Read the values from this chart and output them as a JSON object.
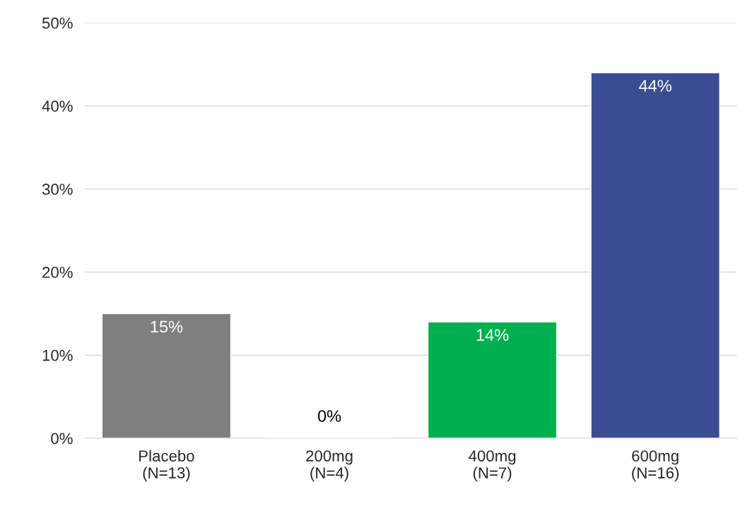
{
  "chart_data": {
    "type": "bar",
    "categories": [
      "Placebo\n(N=13)",
      "200mg\n(N=4)",
      "400mg\n(N=7)",
      "600mg\n(N=16)"
    ],
    "values": [
      15,
      0,
      14,
      44
    ],
    "colors": [
      "#7f7f7f",
      null,
      "#00b050",
      "#3a4d92"
    ],
    "value_labels": [
      "15%",
      "0%",
      "14%",
      "44%"
    ],
    "ylim": [
      0,
      50
    ],
    "yticks": [
      {
        "value": 0,
        "label": "0%"
      },
      {
        "value": 10,
        "label": "10%"
      },
      {
        "value": 20,
        "label": "20%"
      },
      {
        "value": 30,
        "label": "30%"
      },
      {
        "value": 40,
        "label": "40%"
      },
      {
        "value": 50,
        "label": "50%"
      }
    ],
    "grid": "y",
    "legend": false
  }
}
